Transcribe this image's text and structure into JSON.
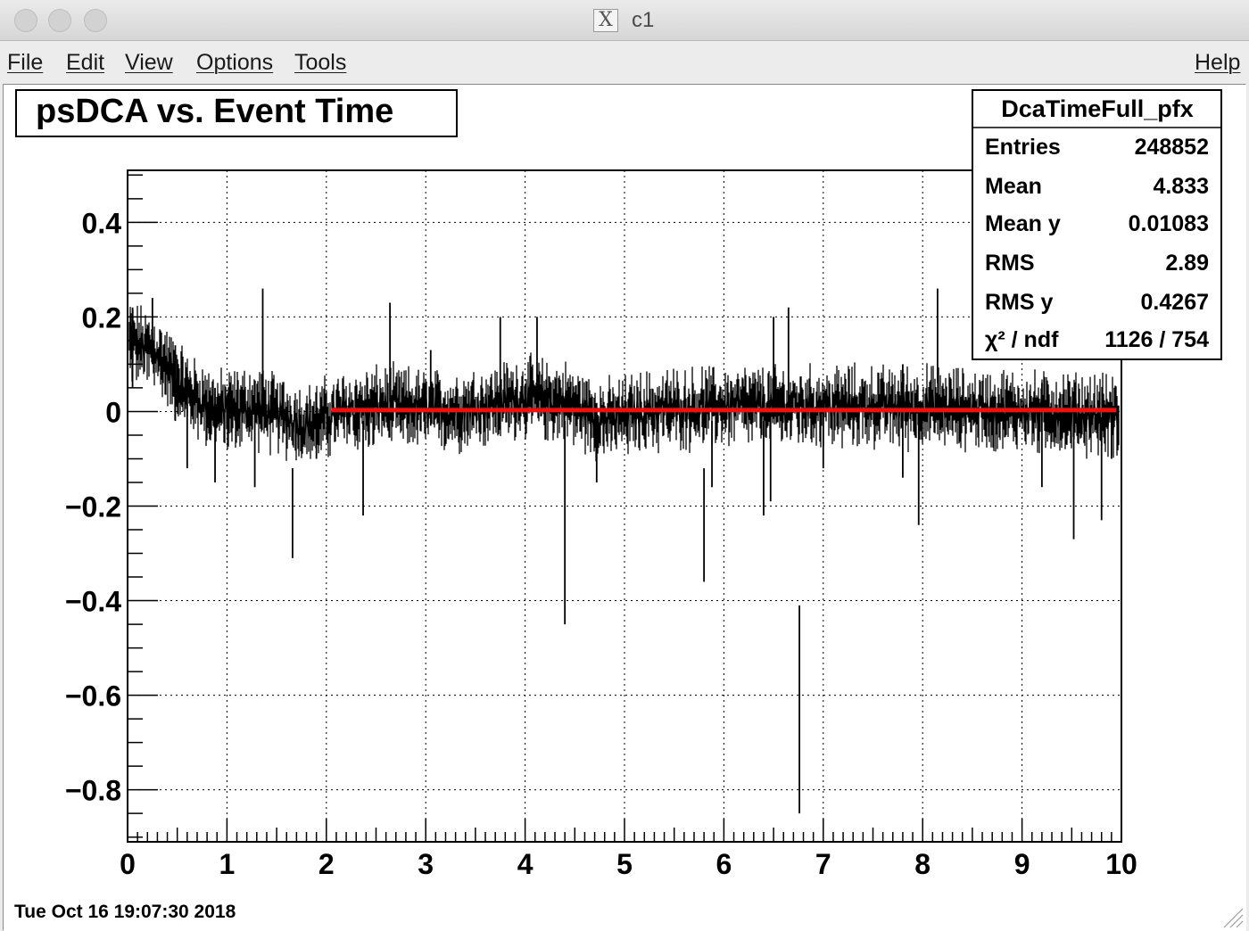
{
  "window": {
    "title": "c1",
    "title_icon": "X"
  },
  "menu": {
    "items": [
      {
        "label": "File",
        "name": "menu-file"
      },
      {
        "label": "Edit",
        "name": "menu-edit"
      },
      {
        "label": "View",
        "name": "menu-view"
      },
      {
        "label": "Options",
        "name": "menu-options"
      },
      {
        "label": "Tools",
        "name": "menu-tools"
      }
    ],
    "help": "Help"
  },
  "canvas": {
    "timestamp": "Tue Oct 16 19:07:30 2018"
  },
  "stats": {
    "title": "DcaTimeFull_pfx",
    "rows": [
      {
        "label": "Entries",
        "value": "248852"
      },
      {
        "label": "Mean",
        "value": "4.833"
      },
      {
        "label": "Mean y",
        "value": "0.01083"
      },
      {
        "label": "RMS",
        "value": "2.89"
      },
      {
        "label": "RMS y",
        "value": "0.4267"
      },
      {
        "label": "χ² / ndf",
        "value": "1126 / 754"
      }
    ]
  },
  "colors": {
    "fit_line": "#ee1111",
    "data": "#000000",
    "grid": "#000000"
  },
  "chart_data": {
    "type": "scatter",
    "title": "psDCA vs. Event Time",
    "xlabel": "",
    "ylabel": "",
    "xlim": [
      0,
      10
    ],
    "ylim": [
      -0.91,
      0.51
    ],
    "xticks": [
      "0",
      "1",
      "2",
      "3",
      "4",
      "5",
      "6",
      "7",
      "8",
      "9",
      "10"
    ],
    "yticks": [
      {
        "value": 0.4,
        "label": "0.4"
      },
      {
        "value": 0.2,
        "label": "0.2"
      },
      {
        "value": 0,
        "label": "0"
      },
      {
        "value": -0.2,
        "label": "−0.2"
      },
      {
        "value": -0.4,
        "label": "−0.4"
      },
      {
        "value": -0.6,
        "label": "−0.6"
      },
      {
        "value": -0.8,
        "label": "−0.8"
      }
    ],
    "grid": true,
    "fit": {
      "x_start": 2.05,
      "x_end": 9.95,
      "value": 0.003
    },
    "trend": [
      [
        0,
        0.15
      ],
      [
        0.3,
        0.12
      ],
      [
        0.6,
        0.04
      ],
      [
        0.9,
        0.0
      ],
      [
        1.3,
        0.01
      ],
      [
        1.8,
        -0.03
      ],
      [
        2.2,
        0.0
      ],
      [
        2.6,
        0.01
      ],
      [
        3.2,
        0.0
      ],
      [
        3.6,
        0.01
      ],
      [
        4.0,
        0.03
      ],
      [
        4.4,
        0.02
      ],
      [
        4.8,
        -0.02
      ],
      [
        5.2,
        0.0
      ],
      [
        6.0,
        0.01
      ],
      [
        7.0,
        0.01
      ],
      [
        8.0,
        0.01
      ],
      [
        9.0,
        0.0
      ],
      [
        10.0,
        -0.01
      ]
    ],
    "spikes": [
      {
        "x": 0.05,
        "lo": 0.05,
        "hi": 0.22
      },
      {
        "x": 0.25,
        "lo": 0.1,
        "hi": 0.24
      },
      {
        "x": 0.48,
        "lo": -0.02,
        "hi": 0.14
      },
      {
        "x": 0.6,
        "lo": -0.12,
        "hi": 0.08
      },
      {
        "x": 0.88,
        "lo": -0.15,
        "hi": 0.05
      },
      {
        "x": 1.28,
        "lo": -0.16,
        "hi": 0.04
      },
      {
        "x": 1.36,
        "lo": 0.0,
        "hi": 0.26
      },
      {
        "x": 1.66,
        "lo": -0.31,
        "hi": -0.12
      },
      {
        "x": 1.9,
        "lo": -0.1,
        "hi": 0.02
      },
      {
        "x": 2.37,
        "lo": -0.22,
        "hi": -0.02
      },
      {
        "x": 2.64,
        "lo": 0.02,
        "hi": 0.23
      },
      {
        "x": 3.05,
        "lo": -0.03,
        "hi": 0.13
      },
      {
        "x": 3.75,
        "lo": 0.0,
        "hi": 0.2
      },
      {
        "x": 4.12,
        "lo": 0.0,
        "hi": 0.2
      },
      {
        "x": 4.4,
        "lo": -0.45,
        "hi": -0.02
      },
      {
        "x": 4.72,
        "lo": -0.15,
        "hi": 0.0
      },
      {
        "x": 5.8,
        "lo": -0.36,
        "hi": -0.12
      },
      {
        "x": 5.88,
        "lo": -0.16,
        "hi": -0.02
      },
      {
        "x": 6.4,
        "lo": -0.22,
        "hi": -0.02
      },
      {
        "x": 6.47,
        "lo": -0.19,
        "hi": 0.0
      },
      {
        "x": 6.5,
        "lo": 0.02,
        "hi": 0.2
      },
      {
        "x": 6.65,
        "lo": 0.0,
        "hi": 0.22
      },
      {
        "x": 6.76,
        "lo": -0.85,
        "hi": -0.41
      },
      {
        "x": 7.0,
        "lo": -0.12,
        "hi": 0.04
      },
      {
        "x": 7.8,
        "lo": -0.14,
        "hi": 0.1
      },
      {
        "x": 7.96,
        "lo": -0.24,
        "hi": -0.02
      },
      {
        "x": 8.15,
        "lo": 0.06,
        "hi": 0.26
      },
      {
        "x": 9.2,
        "lo": -0.16,
        "hi": 0.06
      },
      {
        "x": 9.52,
        "lo": -0.27,
        "hi": 0.03
      },
      {
        "x": 9.8,
        "lo": -0.23,
        "hi": -0.03
      },
      {
        "x": 9.9,
        "lo": -0.1,
        "hi": 0.02
      }
    ]
  }
}
